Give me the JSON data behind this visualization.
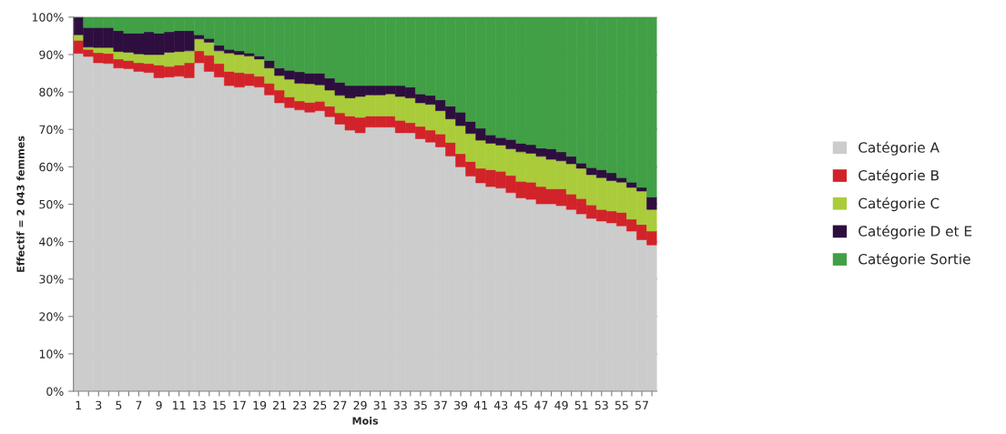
{
  "chart_data": {
    "type": "bar",
    "stacked": true,
    "xlabel": "Mois",
    "ylabel": "Effectif = 2 043 femmes",
    "categories": [
      "1",
      null,
      "3",
      null,
      "5",
      null,
      "7",
      null,
      "9",
      null,
      "11",
      null,
      "13",
      null,
      "15",
      null,
      "17",
      null,
      "19",
      null,
      "21",
      null,
      "23",
      null,
      "25",
      null,
      "27",
      null,
      "29",
      null,
      "31",
      null,
      "33",
      null,
      "35",
      null,
      "37",
      null,
      "39",
      null,
      "41",
      null,
      "43",
      null,
      "45",
      null,
      "47",
      null,
      "49",
      null,
      "51",
      null,
      "53",
      null,
      "55",
      null,
      "57",
      null
    ],
    "series": [
      {
        "name": "Catégorie A",
        "color": "#cccccc",
        "values": [
          90.3,
          89.5,
          87.8,
          87.6,
          86.4,
          86.2,
          85.5,
          85.2,
          83.8,
          84.0,
          84.2,
          83.8,
          87.8,
          85.5,
          84.0,
          81.7,
          81.3,
          81.7,
          81.3,
          79.2,
          77.1,
          75.8,
          75.2,
          74.6,
          75.0,
          73.4,
          71.4,
          69.8,
          69.1,
          70.6,
          70.6,
          70.6,
          69.1,
          69.1,
          67.5,
          66.6,
          65.3,
          62.9,
          60.0,
          57.5,
          55.7,
          54.7,
          54.3,
          53.1,
          51.7,
          51.3,
          50.1,
          50.1,
          49.6,
          48.6,
          47.4,
          46.2,
          45.5,
          45.0,
          44.2,
          42.8,
          40.5,
          39.1
        ]
      },
      {
        "name": "Catégorie B",
        "color": "#d2232a",
        "values": [
          3.5,
          1.9,
          2.7,
          2.7,
          2.4,
          2.2,
          2.3,
          2.4,
          3.4,
          2.8,
          3.0,
          4.0,
          3.2,
          4.3,
          3.6,
          3.8,
          3.9,
          3.2,
          2.9,
          3.1,
          3.4,
          2.9,
          2.4,
          2.6,
          2.5,
          2.8,
          3.0,
          3.8,
          4.1,
          3.0,
          3.0,
          3.0,
          3.3,
          2.7,
          3.3,
          3.2,
          3.5,
          3.6,
          3.5,
          3.9,
          3.9,
          4.5,
          4.5,
          4.6,
          4.4,
          4.6,
          4.6,
          4.0,
          4.5,
          4.1,
          4.1,
          3.6,
          3.1,
          3.2,
          3.6,
          3.2,
          4.1,
          3.7
        ]
      },
      {
        "name": "Catégorie C",
        "color": "#aacc3a",
        "values": [
          1.5,
          0.6,
          1.4,
          1.6,
          2.0,
          2.2,
          2.4,
          2.4,
          2.8,
          3.8,
          3.6,
          3.2,
          3.2,
          3.5,
          3.4,
          4.9,
          4.8,
          4.7,
          4.6,
          4.1,
          3.9,
          4.7,
          4.7,
          5.0,
          4.4,
          4.3,
          4.7,
          4.8,
          5.6,
          5.6,
          5.6,
          5.9,
          6.4,
          6.6,
          6.3,
          6.9,
          6.2,
          6.3,
          7.5,
          7.5,
          7.5,
          7.1,
          7.0,
          7.1,
          7.9,
          7.7,
          8.1,
          7.9,
          7.5,
          8.1,
          8.1,
          8.1,
          8.5,
          8.1,
          8.1,
          8.5,
          8.9,
          5.8
        ]
      },
      {
        "name": "Catégorie D et E",
        "color": "#2e0e3f",
        "values": [
          4.7,
          5.2,
          5.3,
          5.3,
          5.6,
          5.1,
          5.5,
          6.1,
          5.7,
          5.5,
          5.6,
          5.4,
          1.1,
          1.0,
          1.5,
          1.0,
          1.0,
          0.8,
          0.8,
          2.0,
          2.0,
          2.4,
          3.1,
          2.8,
          3.1,
          3.2,
          3.5,
          3.3,
          2.9,
          2.5,
          2.5,
          2.2,
          2.9,
          2.9,
          2.4,
          2.4,
          2.9,
          3.4,
          3.6,
          3.2,
          3.2,
          2.2,
          2.0,
          2.5,
          2.3,
          2.3,
          2.2,
          2.8,
          2.4,
          2.0,
          1.4,
          1.9,
          2.1,
          2.1,
          1.2,
          1.4,
          1.0,
          3.3
        ]
      },
      {
        "name": "Catégorie Sortie",
        "color": "#41a046",
        "values": [
          0,
          2.8,
          2.8,
          2.8,
          3.6,
          4.3,
          4.3,
          3.9,
          4.3,
          3.9,
          3.6,
          3.6,
          4.7,
          5.7,
          7.5,
          8.6,
          9.0,
          9.6,
          10.4,
          11.6,
          13.6,
          14.2,
          14.6,
          15.0,
          15.0,
          16.3,
          17.4,
          18.3,
          18.3,
          18.3,
          18.3,
          18.3,
          18.3,
          18.7,
          20.5,
          20.9,
          22.1,
          23.8,
          25.4,
          27.9,
          29.7,
          31.5,
          32.2,
          32.7,
          33.7,
          34.1,
          35.0,
          35.2,
          36.0,
          37.2,
          39.0,
          40.2,
          40.8,
          41.6,
          42.9,
          44.1,
          45.5,
          48.1
        ]
      }
    ],
    "ylim": [
      0,
      100
    ],
    "yticks": [
      {
        "value": 0,
        "label": "0%"
      },
      {
        "value": 10,
        "label": "10%"
      },
      {
        "value": 20,
        "label": "20%"
      },
      {
        "value": 30,
        "label": "30%"
      },
      {
        "value": 40,
        "label": "40%"
      },
      {
        "value": 50,
        "label": "50%"
      },
      {
        "value": 60,
        "label": "60%"
      },
      {
        "value": 70,
        "label": "70%"
      },
      {
        "value": 80,
        "label": "80%"
      },
      {
        "value": 90,
        "label": "90%"
      },
      {
        "value": 100,
        "label": "100%"
      }
    ],
    "grid": "y",
    "legend": "right"
  }
}
